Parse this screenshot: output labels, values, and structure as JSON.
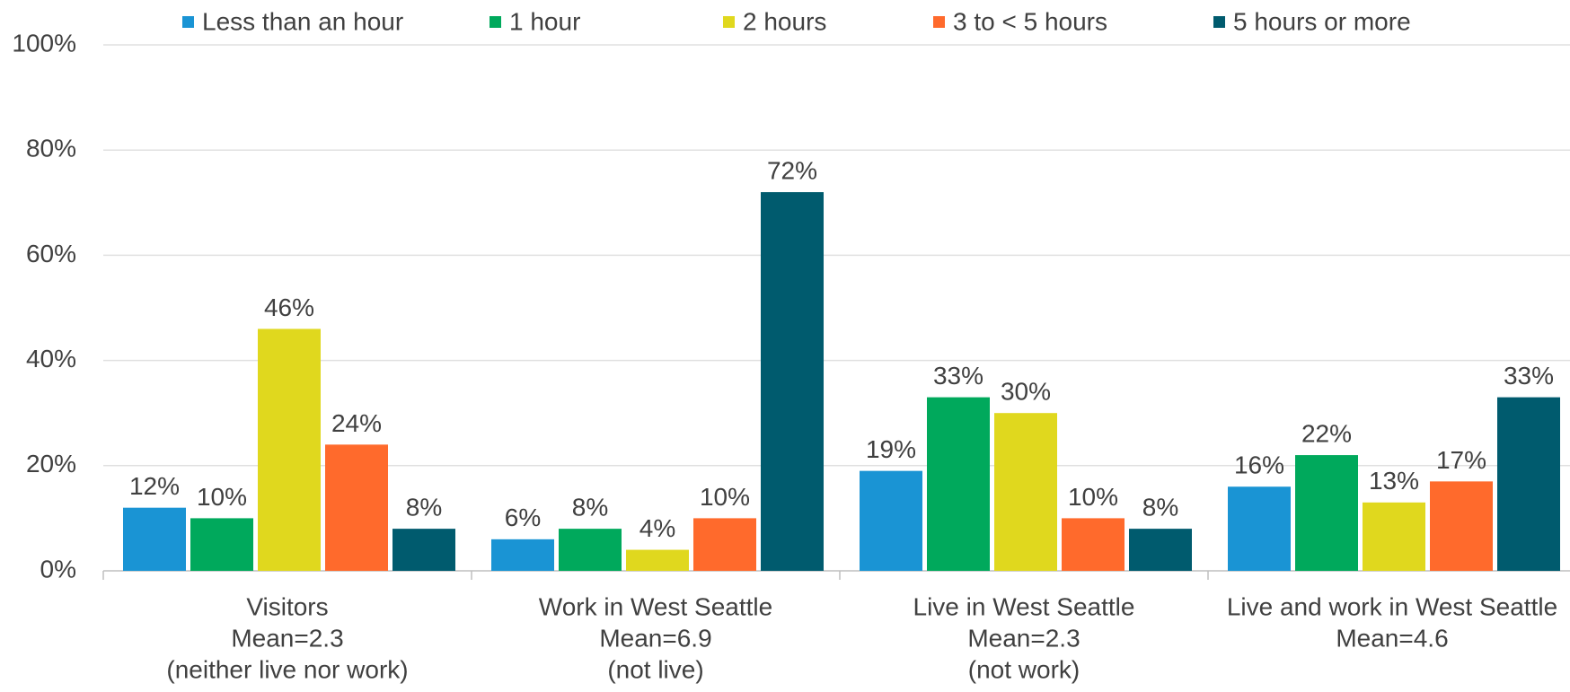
{
  "chart_data": {
    "type": "bar",
    "categories": [
      [
        "Visitors",
        "Mean=2.3",
        "(neither live nor work)"
      ],
      [
        "Work in West Seattle",
        "Mean=6.9",
        "(not live)"
      ],
      [
        "Live in West Seattle",
        "Mean=2.3",
        "(not work)"
      ],
      [
        "Live and work in West Seattle",
        "Mean=4.6"
      ]
    ],
    "series": [
      {
        "name": "Less than an hour",
        "color": "#1a94d4",
        "values": [
          12,
          6,
          19,
          16
        ],
        "value_labels": [
          "12%",
          "6%",
          "19%",
          "16%"
        ]
      },
      {
        "name": "1 hour",
        "color": "#00a95c",
        "values": [
          10,
          8,
          33,
          22
        ],
        "value_labels": [
          "10%",
          "8%",
          "33%",
          "22%"
        ]
      },
      {
        "name": "2 hours",
        "color": "#e0d81e",
        "values": [
          46,
          4,
          30,
          13
        ],
        "value_labels": [
          "46%",
          "4%",
          "30%",
          "13%"
        ]
      },
      {
        "name": "3 to < 5 hours",
        "color": "#ff6a2c",
        "values": [
          24,
          10,
          10,
          17
        ],
        "value_labels": [
          "24%",
          "10%",
          "10%",
          "17%"
        ]
      },
      {
        "name": "5 hours or more",
        "color": "#005b6e",
        "values": [
          8,
          72,
          8,
          33
        ],
        "value_labels": [
          "8%",
          "72%",
          "8%",
          "33%"
        ]
      }
    ],
    "ylim": [
      0,
      100
    ],
    "yticks": [
      {
        "value": 0,
        "label": "0%"
      },
      {
        "value": 20,
        "label": "20%"
      },
      {
        "value": 40,
        "label": "40%"
      },
      {
        "value": 60,
        "label": "60%"
      },
      {
        "value": 80,
        "label": "80%"
      },
      {
        "value": 100,
        "label": "100%"
      }
    ],
    "grid": true,
    "legend": "top"
  }
}
